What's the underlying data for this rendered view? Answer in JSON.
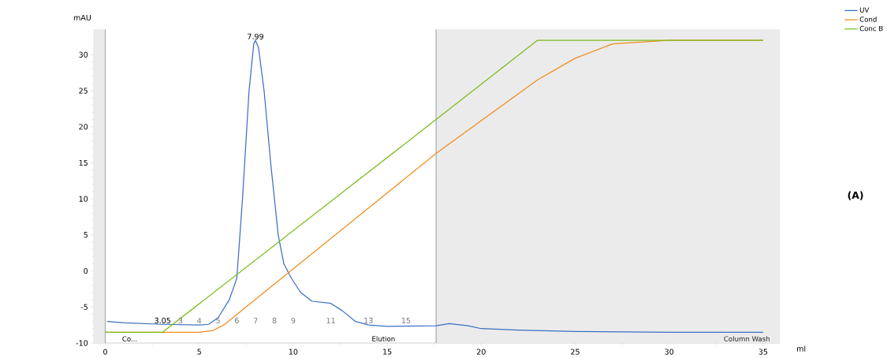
{
  "chart_data": {
    "type": "line",
    "xlabel": "ml",
    "ylabel": "mAU",
    "xlim": [
      -0.6,
      35.9
    ],
    "ylim": [
      -10,
      33.5
    ],
    "xticks": [
      0,
      5,
      10,
      15,
      20,
      25,
      30,
      35
    ],
    "yticks": [
      -10,
      -5,
      0,
      5,
      10,
      15,
      20,
      25,
      30
    ],
    "grid": false,
    "legend": "top right",
    "marker": "none",
    "line_style": "solid",
    "series": [
      {
        "name": "UV",
        "color": "#3a6fc4",
        "x": [
          0.1,
          1,
          3,
          5,
          5.5,
          6,
          6.6,
          7,
          7.3,
          7.65,
          7.9,
          7.99,
          8.15,
          8.45,
          8.8,
          9.2,
          9.5,
          9.9,
          10.4,
          11,
          12,
          12.6,
          13.3,
          14,
          15,
          17.6,
          18.3,
          19.3,
          20,
          22,
          25,
          30,
          35
        ],
        "values": [
          -7,
          -7.2,
          -7.4,
          -7.5,
          -7.4,
          -6.5,
          -4,
          -1,
          10,
          25,
          31.5,
          32,
          31,
          25,
          15,
          5,
          1,
          -1,
          -3,
          -4.2,
          -4.5,
          -5.5,
          -7,
          -7.5,
          -7.7,
          -7.6,
          -7.3,
          -7.6,
          -8,
          -8.2,
          -8.4,
          -8.5,
          -8.5
        ]
      },
      {
        "name": "Cond",
        "color": "#f08c1c",
        "x": [
          0,
          5,
          5.7,
          6.3,
          17.6,
          23,
          25,
          27,
          30,
          35
        ],
        "values": [
          -8.5,
          -8.5,
          -8.3,
          -7.5,
          16.3,
          26.5,
          29.5,
          31.5,
          32,
          32
        ]
      },
      {
        "name": "Conc B",
        "color": "#7cbb1c",
        "x": [
          0,
          3.05,
          17.6,
          23,
          35
        ],
        "values": [
          -8.5,
          -8.5,
          21,
          32,
          32
        ]
      }
    ],
    "bands": [
      {
        "axis": "x",
        "from": -0.6,
        "to": 0,
        "color": "#ebebeb"
      },
      {
        "axis": "x",
        "from": 17.6,
        "to": 35.9,
        "label": "Column Wash",
        "color": "#ebebeb"
      }
    ],
    "ref_lines": [
      {
        "axis": "x",
        "value": 0,
        "color": "#a0a8b0"
      },
      {
        "axis": "x",
        "value": 17.6,
        "color": "#a0a8b0"
      }
    ],
    "annotations": [
      {
        "text": "7.99",
        "x": 7.99,
        "y": 32
      },
      {
        "text": "3.05",
        "x": 3.05,
        "y": -7.4
      },
      "3",
      "4",
      "5",
      "6",
      "7",
      "8",
      "9",
      "11",
      "13",
      "15",
      "Co...",
      "Elution",
      "(A)"
    ]
  }
}
